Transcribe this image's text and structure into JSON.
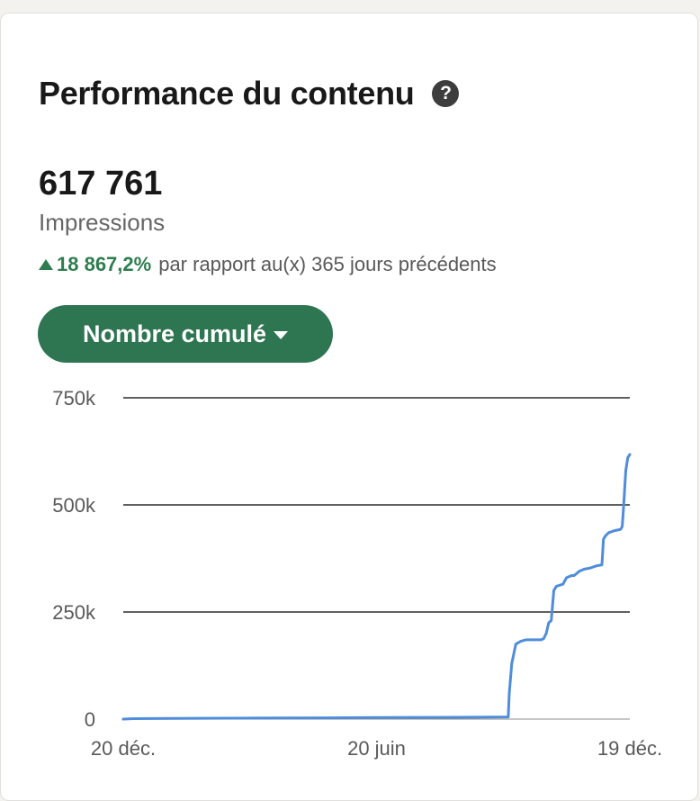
{
  "header": {
    "title": "Performance du contenu",
    "help_icon": "question-circle-icon"
  },
  "metric": {
    "value": "617 761",
    "label": "Impressions",
    "change_icon": "triangle-up-icon",
    "change_percent": "18 867,2%",
    "change_text": "par rapport au(x) 365 jours précédents"
  },
  "dropdown": {
    "label": "Nombre cumulé",
    "icon": "caret-down-icon"
  },
  "colors": {
    "accent_green": "#2e7552",
    "positive_green": "#2e7d4f",
    "line_blue": "#4f8ddb"
  },
  "chart_data": {
    "type": "line",
    "series": [
      {
        "x": [
          0,
          0.02,
          0.1,
          0.2,
          0.3,
          0.4,
          0.5,
          0.6,
          0.7,
          0.76,
          0.762,
          0.767,
          0.775,
          0.785,
          0.795,
          0.81,
          0.825,
          0.83,
          0.835,
          0.84,
          0.845,
          0.85,
          0.855,
          0.86,
          0.868,
          0.875,
          0.885,
          0.89,
          0.895,
          0.9,
          0.91,
          0.92,
          0.935,
          0.945,
          0.948,
          0.952,
          0.958,
          0.97,
          0.982,
          0.985,
          0.988,
          0.992,
          0.996,
          1.0
        ],
        "values": [
          0,
          1000,
          1500,
          2000,
          2500,
          3000,
          3500,
          4000,
          4500,
          5000,
          60000,
          130000,
          175000,
          182000,
          185000,
          185000,
          185000,
          188000,
          200000,
          225000,
          230000,
          300000,
          310000,
          312000,
          315000,
          330000,
          335000,
          335000,
          340000,
          345000,
          350000,
          352000,
          358000,
          360000,
          420000,
          428000,
          435000,
          440000,
          443000,
          450000,
          500000,
          580000,
          610000,
          617761
        ]
      }
    ],
    "xticks": [
      "20 déc.",
      "20 juin",
      "19 déc."
    ],
    "xtick_positions": [
      0,
      0.5,
      1.0
    ],
    "yticks": [
      "0",
      "250k",
      "500k",
      "750k"
    ],
    "ytick_values": [
      0,
      250000,
      500000,
      750000
    ],
    "ylim": [
      0,
      750000
    ],
    "grid": true
  }
}
